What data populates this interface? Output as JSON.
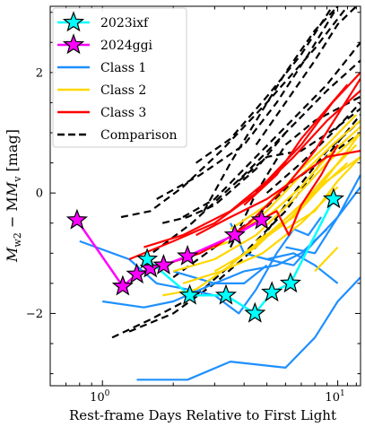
{
  "chart_data": {
    "type": "line",
    "xlabel": "Rest-frame Days Relative to First Light",
    "ylabel_main": "M",
    "ylabel_sub1": "w2",
    "ylabel_mid": " − M",
    "ylabel_sub2": "v",
    "ylabel_unit": " [mag]",
    "x_scale": "log",
    "xlim": [
      0.6,
      12.5
    ],
    "ylim": [
      -3.2,
      3.1
    ],
    "y_invert": true,
    "x_ticks": [
      {
        "value": 1,
        "base": "10",
        "exp": "0"
      },
      {
        "value": 10,
        "base": "10",
        "exp": "1"
      }
    ],
    "y_ticks": [
      {
        "value": 2,
        "label": "2"
      },
      {
        "value": 0,
        "label": "0"
      },
      {
        "value": -2,
        "label": "−2"
      }
    ],
    "grid": false,
    "legend_position": "top-left",
    "legend": [
      {
        "label": "2023ixf",
        "color": "#00ffff",
        "style": "star-line"
      },
      {
        "label": "2024ggi",
        "color": "#ff00ff",
        "style": "star-line"
      },
      {
        "label": "Class 1",
        "color": "#1e90ff",
        "style": "solid"
      },
      {
        "label": "Class 2",
        "color": "#ffd700",
        "style": "solid"
      },
      {
        "label": "Class 3",
        "color": "#ff0000",
        "style": "solid"
      },
      {
        "label": "Comparison",
        "color": "#000000",
        "style": "dashed"
      }
    ],
    "series": [
      {
        "name": "Comparison",
        "color": "#000000",
        "dashed": true,
        "lines": [
          [
            [
              1.2,
              -0.4
            ],
            [
              1.6,
              -0.3
            ],
            [
              2.2,
              0.1
            ],
            [
              3.2,
              0.7
            ],
            [
              5,
              1.5
            ],
            [
              8,
              2.4
            ],
            [
              11,
              3.1
            ]
          ],
          [
            [
              1.5,
              -1.1
            ],
            [
              2.4,
              -0.5
            ],
            [
              4,
              0.3
            ],
            [
              6,
              1.0
            ],
            [
              9,
              1.7
            ],
            [
              12.5,
              2.2
            ]
          ],
          [
            [
              1.7,
              -0.1
            ],
            [
              2.6,
              0.3
            ],
            [
              4,
              0.8
            ],
            [
              5.5,
              1.5
            ],
            [
              7.5,
              2.3
            ],
            [
              10,
              3.1
            ]
          ],
          [
            [
              1.3,
              -2.3
            ],
            [
              2,
              -2.0
            ],
            [
              3,
              -1.5
            ],
            [
              4.5,
              -0.9
            ],
            [
              6.5,
              0.0
            ],
            [
              9,
              0.7
            ],
            [
              12.5,
              1.2
            ]
          ],
          [
            [
              1.1,
              -2.4
            ],
            [
              1.6,
              -2.1
            ],
            [
              2.5,
              -1.7
            ],
            [
              4,
              -1.0
            ],
            [
              6,
              -0.3
            ],
            [
              8.5,
              0.5
            ],
            [
              12.5,
              1.3
            ]
          ],
          [
            [
              2.2,
              -0.4
            ],
            [
              3,
              -0.1
            ],
            [
              4,
              0.4
            ],
            [
              6,
              1.1
            ],
            [
              9,
              1.8
            ],
            [
              12.5,
              2.5
            ]
          ],
          [
            [
              2.5,
              0.5
            ],
            [
              3.5,
              0.9
            ],
            [
              5,
              1.6
            ],
            [
              7,
              2.3
            ],
            [
              9.5,
              3.1
            ]
          ],
          [
            [
              3.5,
              -0.9
            ],
            [
              4.5,
              0.0
            ],
            [
              6,
              0.8
            ],
            [
              8,
              1.2
            ],
            [
              12.5,
              1.6
            ]
          ],
          [
            [
              3.8,
              0.2
            ],
            [
              5,
              0.6
            ],
            [
              7,
              0.7
            ],
            [
              10,
              1.1
            ],
            [
              12.5,
              1.4
            ]
          ],
          [
            [
              2.7,
              -0.3
            ],
            [
              3.5,
              0.5
            ],
            [
              4.5,
              1.2
            ],
            [
              6,
              2.0
            ],
            [
              8,
              2.7
            ],
            [
              10,
              3.1
            ]
          ],
          [
            [
              4.5,
              0.8
            ],
            [
              6,
              1.5
            ],
            [
              8,
              2.2
            ],
            [
              10,
              2.8
            ],
            [
              12,
              3.1
            ]
          ],
          [
            [
              2.0,
              -1.4
            ],
            [
              3,
              -0.9
            ],
            [
              4.5,
              -0.4
            ],
            [
              6.5,
              0.2
            ],
            [
              9,
              0.6
            ],
            [
              12.5,
              1.0
            ]
          ],
          [
            [
              1.8,
              -0.5
            ],
            [
              2.3,
              -0.4
            ],
            [
              3,
              -0.2
            ],
            [
              4.5,
              0.4
            ],
            [
              6,
              1.0
            ]
          ],
          [
            [
              5,
              0.0
            ],
            [
              7,
              0.5
            ],
            [
              9.5,
              1.0
            ],
            [
              12.5,
              1.5
            ]
          ]
        ]
      },
      {
        "name": "Class 1",
        "color": "#1e90ff",
        "dashed": false,
        "lines": [
          [
            [
              0.8,
              -0.8
            ],
            [
              1.3,
              -1.1
            ],
            [
              1.7,
              -1.5
            ],
            [
              2.3,
              -1.6
            ],
            [
              3.0,
              -1.7
            ],
            [
              3.8,
              -2.0
            ],
            [
              4.5,
              -1.6
            ],
            [
              5.5,
              -1.0
            ],
            [
              6.5,
              -0.6
            ],
            [
              7.5,
              -0.7
            ],
            [
              8.5,
              -0.4
            ]
          ],
          [
            [
              1.0,
              -1.8
            ],
            [
              1.5,
              -1.9
            ],
            [
              2.0,
              -1.8
            ],
            [
              3.0,
              -1.5
            ],
            [
              4.0,
              -1.5
            ],
            [
              5,
              -1.2
            ]
          ],
          [
            [
              1.4,
              -3.1
            ],
            [
              2.3,
              -3.1
            ],
            [
              3.5,
              -2.8
            ],
            [
              6,
              -2.9
            ],
            [
              8,
              -2.4
            ],
            [
              10,
              -1.8
            ],
            [
              12.5,
              -1.4
            ]
          ],
          [
            [
              2.0,
              -1.3
            ],
            [
              3.0,
              -1.5
            ],
            [
              4.0,
              -1.3
            ],
            [
              5.5,
              -1.2
            ],
            [
              7,
              -1.0
            ],
            [
              9,
              -0.6
            ]
          ],
          [
            [
              3.5,
              -0.5
            ],
            [
              4,
              -1.0
            ],
            [
              5,
              -1.1
            ],
            [
              6.5,
              -1.2
            ],
            [
              8,
              -0.8
            ],
            [
              10,
              -0.4
            ],
            [
              12.5,
              0.3
            ]
          ],
          [
            [
              5,
              -1.1
            ],
            [
              6.5,
              -1.0
            ],
            [
              8,
              -1.2
            ],
            [
              10,
              -1.5
            ]
          ],
          [
            [
              6,
              -0.9
            ],
            [
              8,
              -1.0
            ],
            [
              10,
              -0.4
            ],
            [
              12.5,
              0.1
            ]
          ]
        ]
      },
      {
        "name": "Class 2",
        "color": "#ffd700",
        "dashed": false,
        "lines": [
          [
            [
              1.8,
              -1.7
            ],
            [
              2.5,
              -1.6
            ],
            [
              3.5,
              -1.2
            ],
            [
              5,
              -0.7
            ],
            [
              7,
              -0.2
            ],
            [
              9,
              0.3
            ],
            [
              12,
              0.8
            ]
          ],
          [
            [
              2.0,
              -1.3
            ],
            [
              3.0,
              -1.1
            ],
            [
              4.5,
              -0.7
            ],
            [
              6.5,
              -0.1
            ],
            [
              9,
              0.5
            ],
            [
              12.5,
              1.0
            ]
          ],
          [
            [
              2.5,
              -1.0
            ],
            [
              3.5,
              -0.8
            ],
            [
              5,
              -0.3
            ],
            [
              7,
              0.3
            ],
            [
              9.5,
              0.8
            ],
            [
              12.5,
              1.2
            ]
          ],
          [
            [
              3.0,
              -1.3
            ],
            [
              4.5,
              -0.9
            ],
            [
              6.5,
              -0.3
            ],
            [
              9,
              0.2
            ],
            [
              12.5,
              0.6
            ]
          ],
          [
            [
              3.5,
              -0.6
            ],
            [
              5,
              -0.2
            ],
            [
              7,
              0.4
            ],
            [
              9,
              0.8
            ],
            [
              12,
              1.3
            ]
          ],
          [
            [
              4.0,
              -1.0
            ],
            [
              6,
              -0.5
            ],
            [
              8,
              0.0
            ],
            [
              10.5,
              0.6
            ],
            [
              12.5,
              1.0
            ]
          ],
          [
            [
              4.5,
              -0.8
            ],
            [
              6.5,
              -0.4
            ],
            [
              8.5,
              0.1
            ],
            [
              11,
              0.5
            ]
          ],
          [
            [
              5,
              -0.4
            ],
            [
              7,
              0.1
            ],
            [
              9,
              0.6
            ],
            [
              12.5,
              1.1
            ]
          ],
          [
            [
              2.2,
              -1.5
            ],
            [
              3.2,
              -1.3
            ],
            [
              4.8,
              -1.0
            ],
            [
              7,
              -0.5
            ],
            [
              10,
              0.1
            ]
          ],
          [
            [
              8,
              -1.3
            ],
            [
              10,
              -0.9
            ]
          ],
          [
            [
              6,
              -0.6
            ],
            [
              8,
              -0.3
            ],
            [
              10,
              0.2
            ],
            [
              12.5,
              0.6
            ]
          ]
        ]
      },
      {
        "name": "Class 3",
        "color": "#ff0000",
        "dashed": false,
        "lines": [
          [
            [
              1.3,
              -1.1
            ],
            [
              2,
              -0.8
            ],
            [
              3,
              -0.5
            ],
            [
              4.5,
              0.0
            ],
            [
              6.5,
              0.6
            ],
            [
              9,
              1.2
            ],
            [
              12.5,
              1.7
            ]
          ],
          [
            [
              1.5,
              -0.9
            ],
            [
              2.2,
              -0.7
            ],
            [
              3.5,
              -0.3
            ],
            [
              5,
              0.2
            ],
            [
              7,
              0.8
            ],
            [
              9.5,
              1.5
            ],
            [
              12.5,
              2.0
            ]
          ],
          [
            [
              2.5,
              -0.7
            ],
            [
              3.5,
              -0.4
            ],
            [
              5,
              -0.1
            ],
            [
              7,
              0.3
            ],
            [
              9,
              0.6
            ],
            [
              12.5,
              0.7
            ]
          ],
          [
            [
              1.8,
              -1.2
            ],
            [
              2.6,
              -1.0
            ],
            [
              4,
              -0.6
            ],
            [
              5.5,
              -0.3
            ],
            [
              6.2,
              -0.7
            ],
            [
              7,
              -0.2
            ],
            [
              8.5,
              0.3
            ],
            [
              10,
              0.8
            ]
          ],
          [
            [
              3.0,
              -0.9
            ],
            [
              4.2,
              -0.5
            ],
            [
              6,
              0.1
            ],
            [
              8,
              0.7
            ],
            [
              10,
              1.3
            ],
            [
              12.5,
              1.9
            ]
          ],
          [
            [
              4,
              -0.2
            ],
            [
              5.5,
              0.3
            ],
            [
              7,
              0.9
            ],
            [
              9,
              1.4
            ],
            [
              11,
              1.8
            ]
          ]
        ]
      },
      {
        "name": "2024ggi",
        "color": "#ff00ff",
        "dashed": false,
        "markers": true,
        "points": [
          [
            0.78,
            -0.45
          ],
          [
            1.22,
            -1.55
          ],
          [
            1.4,
            -1.35
          ],
          [
            1.6,
            -1.25
          ],
          [
            1.82,
            -1.2
          ],
          [
            2.3,
            -1.05
          ],
          [
            3.65,
            -0.7
          ],
          [
            4.75,
            -0.45
          ]
        ]
      },
      {
        "name": "2023ixf",
        "color": "#00ffff",
        "dashed": false,
        "markers": true,
        "points": [
          [
            1.55,
            -1.1
          ],
          [
            2.35,
            -1.7
          ],
          [
            3.35,
            -1.7
          ],
          [
            4.45,
            -2.0
          ],
          [
            5.25,
            -1.65
          ],
          [
            6.3,
            -1.5
          ],
          [
            9.6,
            -0.1
          ]
        ]
      }
    ]
  }
}
